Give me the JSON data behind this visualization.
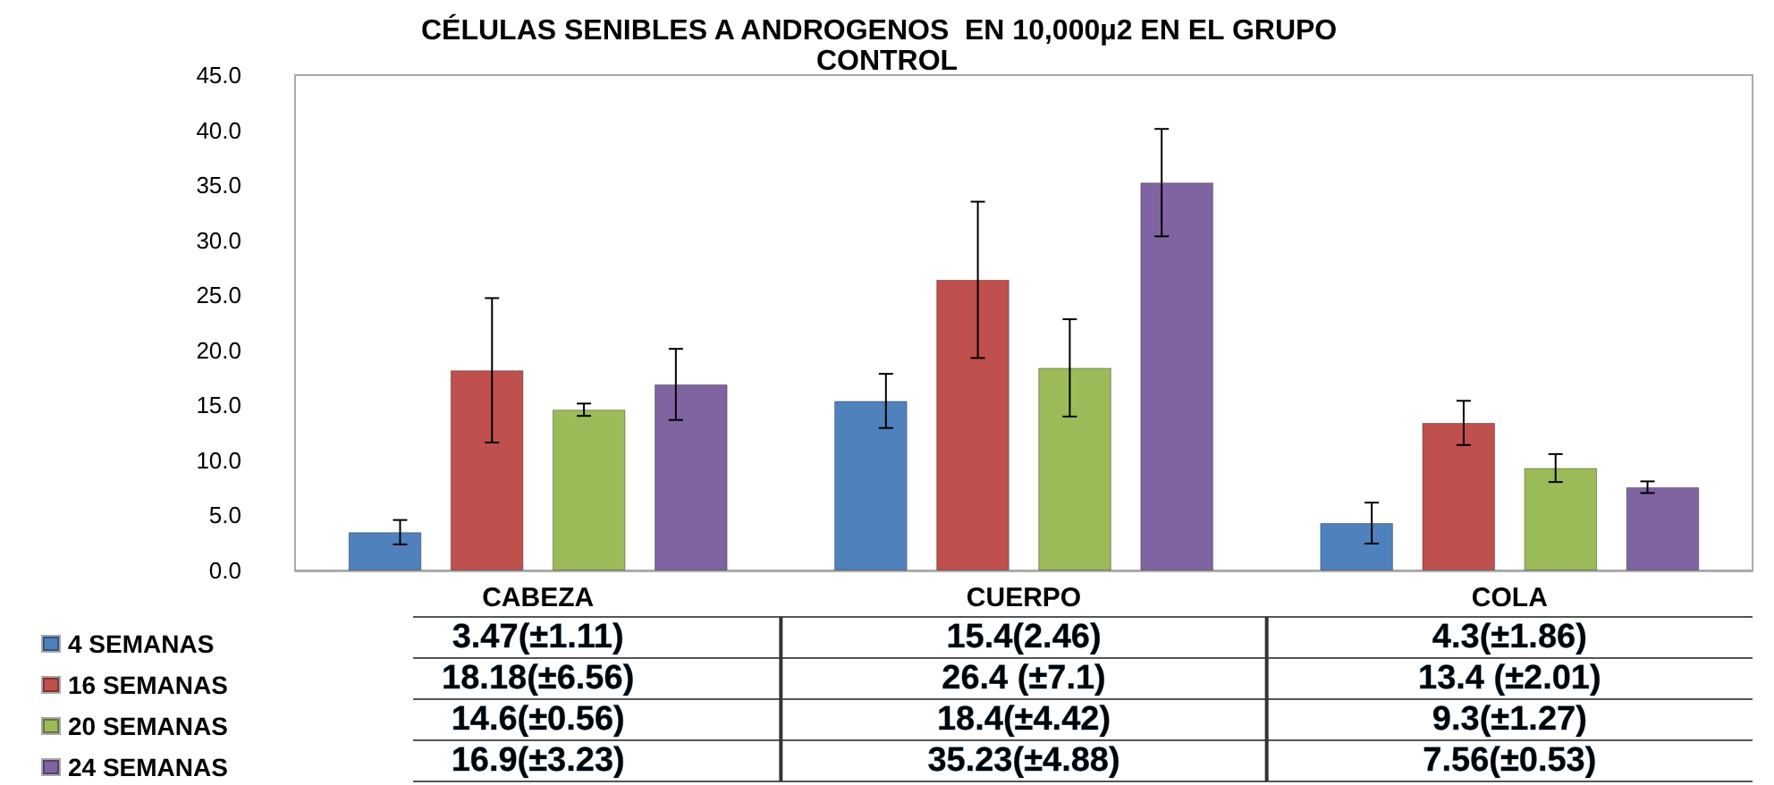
{
  "chart_data": {
    "type": "bar",
    "title": "CÉLULAS SENIBLES A ANDROGENOS  EN 10,000µ2 EN EL GRUPO  CONTROL",
    "categories": [
      "CABEZA",
      "CUERPO",
      "COLA"
    ],
    "series": [
      {
        "name": "4 SEMANAS",
        "color": "#4f81bd",
        "values": [
          3.47,
          15.4,
          4.3
        ],
        "errors": [
          1.11,
          2.46,
          1.86
        ],
        "value_labels": [
          "3.47(±1.11)",
          "15.4(2.46)",
          "4.3(±1.86)"
        ]
      },
      {
        "name": "16 SEMANAS",
        "color": "#c0504d",
        "values": [
          18.18,
          26.4,
          13.4
        ],
        "errors": [
          6.56,
          7.1,
          2.01
        ],
        "value_labels": [
          "18.18(±6.56)",
          "26.4 (±7.1)",
          "13.4 (±2.01)"
        ]
      },
      {
        "name": "20 SEMANAS",
        "color": "#9bbb59",
        "values": [
          14.6,
          18.4,
          9.3
        ],
        "errors": [
          0.56,
          4.42,
          1.27
        ],
        "value_labels": [
          "14.6(±0.56)",
          "18.4(±4.42)",
          "9.3(±1.27)"
        ]
      },
      {
        "name": "24 SEMANAS",
        "color": "#8064a2",
        "values": [
          16.9,
          35.23,
          7.56
        ],
        "errors": [
          3.23,
          4.88,
          0.53
        ],
        "value_labels": [
          "16.9(±3.23)",
          "35.23(±4.88)",
          "7.56(±0.53)"
        ]
      }
    ],
    "ylim": [
      0,
      45
    ],
    "yticks": [
      {
        "value": 0,
        "label": "0.0"
      },
      {
        "value": 5,
        "label": "5.0"
      },
      {
        "value": 10,
        "label": "10.0"
      },
      {
        "value": 15,
        "label": "15.0"
      },
      {
        "value": 20,
        "label": "20.0"
      },
      {
        "value": 25,
        "label": "25.0"
      },
      {
        "value": 30,
        "label": "30.0"
      },
      {
        "value": 35,
        "label": "35.0"
      },
      {
        "value": 40,
        "label": "40.0"
      },
      {
        "value": 45,
        "label": "45.0"
      }
    ],
    "grid": false,
    "legend": "bottom left"
  }
}
